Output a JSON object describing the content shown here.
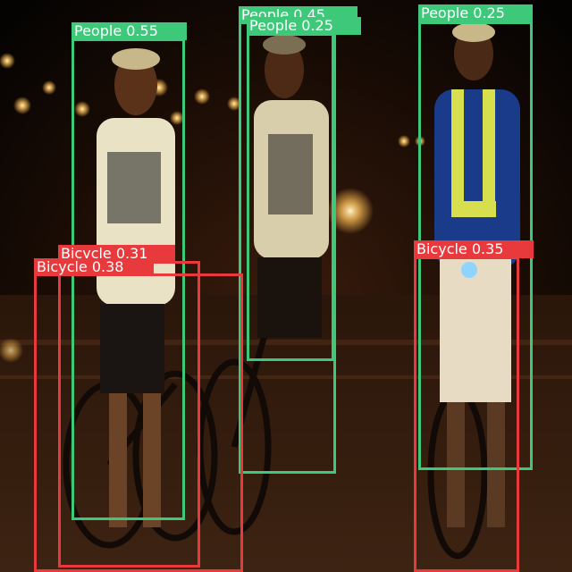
{
  "colors": {
    "people": "#3ec97a",
    "bicycle": "#e8393d"
  },
  "detections": [
    {
      "class_label": "People 0.55",
      "category": "people"
    },
    {
      "class_label": "People 0.45",
      "category": "people"
    },
    {
      "class_label": "People 0.25",
      "category": "people"
    },
    {
      "class_label": "People 0.25",
      "category": "people"
    },
    {
      "class_label": "Bicycle 0.31",
      "category": "bicycle"
    },
    {
      "class_label": "Bicycle 0.38",
      "category": "bicycle"
    },
    {
      "class_label": "Bicycle 0.35",
      "category": "bicycle"
    }
  ]
}
